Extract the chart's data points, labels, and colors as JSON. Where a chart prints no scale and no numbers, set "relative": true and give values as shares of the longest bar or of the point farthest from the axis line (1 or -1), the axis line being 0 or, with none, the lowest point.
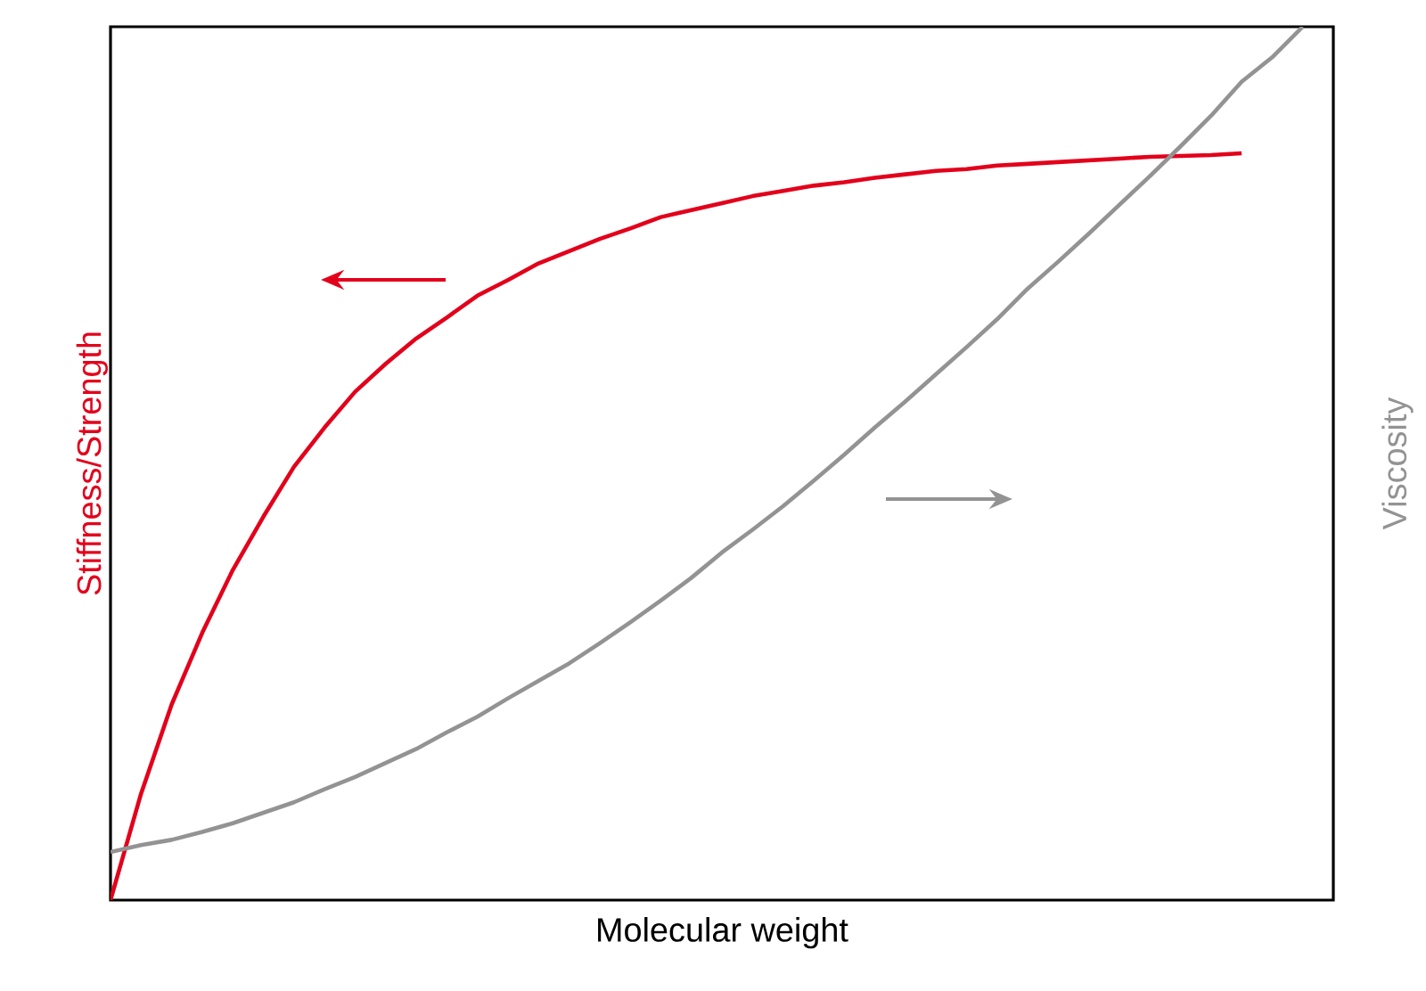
{
  "chart_data": {
    "type": "line",
    "relative": true,
    "xlabel": "Molecular weight",
    "ylabel": "Stiffness/Strength",
    "y2label": "Viscosity",
    "marker": "none",
    "line_style": "solid",
    "categories": [
      null,
      null,
      null,
      null,
      null,
      null,
      null,
      null,
      null,
      null,
      null,
      null,
      null,
      null,
      null,
      null,
      null,
      null,
      null,
      null,
      null,
      null,
      null,
      null,
      null,
      null,
      null,
      null,
      null,
      null,
      null,
      null,
      null,
      null,
      null,
      null,
      null,
      null,
      null,
      null,
      null
    ],
    "series": [
      {
        "color": "#e3001b",
        "values": [
          0,
          0.122,
          0.224,
          0.306,
          0.378,
          0.439,
          0.496,
          0.541,
          0.582,
          0.614,
          0.643,
          0.667,
          0.692,
          0.71,
          0.729,
          0.743,
          0.757,
          0.769,
          0.782,
          0.79,
          0.798,
          0.806,
          0.812,
          0.818,
          0.822,
          0.827,
          0.831,
          0.835,
          0.837,
          0.841,
          0.843,
          0.845,
          0.847,
          0.849,
          0.851,
          0.852,
          0.853,
          0.855,
          null,
          null,
          null
        ]
      },
      {
        "color": "#939393",
        "values": [
          0.055,
          0.063,
          0.069,
          0.078,
          0.088,
          0.1,
          0.112,
          0.127,
          0.141,
          0.157,
          0.173,
          0.192,
          0.21,
          0.231,
          0.251,
          0.271,
          0.294,
          0.318,
          0.343,
          0.369,
          0.398,
          0.424,
          0.451,
          0.48,
          0.51,
          0.541,
          0.571,
          0.602,
          0.633,
          0.665,
          0.7,
          0.731,
          0.763,
          0.796,
          0.829,
          0.863,
          0.898,
          0.937,
          0.965,
          1,
          null
        ]
      }
    ]
  }
}
